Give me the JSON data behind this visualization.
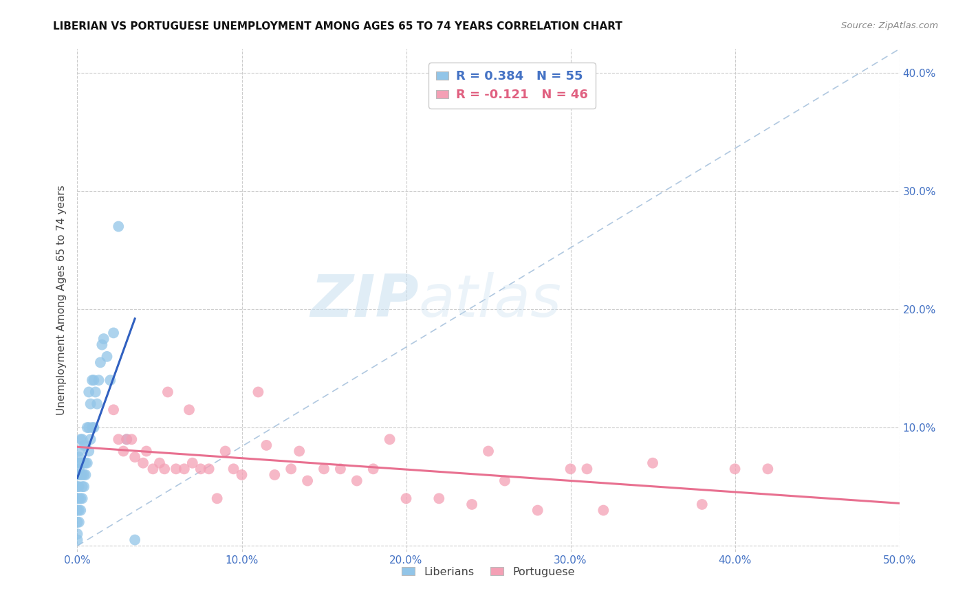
{
  "title": "LIBERIAN VS PORTUGUESE UNEMPLOYMENT AMONG AGES 65 TO 74 YEARS CORRELATION CHART",
  "source": "Source: ZipAtlas.com",
  "ylabel": "Unemployment Among Ages 65 to 74 years",
  "xlim": [
    0.0,
    0.5
  ],
  "ylim": [
    -0.005,
    0.42
  ],
  "xticks": [
    0.0,
    0.1,
    0.2,
    0.3,
    0.4,
    0.5
  ],
  "yticks": [
    0.0,
    0.1,
    0.2,
    0.3,
    0.4
  ],
  "xticklabels": [
    "0.0%",
    "10.0%",
    "20.0%",
    "30.0%",
    "40.0%",
    "50.0%"
  ],
  "yticklabels_right": [
    "",
    "10.0%",
    "20.0%",
    "30.0%",
    "40.0%"
  ],
  "liberian_color": "#92C5E8",
  "portuguese_color": "#F4A0B5",
  "liberian_R": 0.384,
  "liberian_N": 55,
  "portuguese_R": -0.121,
  "portuguese_N": 46,
  "trend_line_liberian_color": "#3060C0",
  "trend_line_portuguese_color": "#E87090",
  "dashed_line_color": "#B0C8E0",
  "watermark_zip": "ZIP",
  "watermark_atlas": "atlas",
  "liberian_x": [
    0.0,
    0.0,
    0.0,
    0.0,
    0.0,
    0.0,
    0.0,
    0.001,
    0.001,
    0.001,
    0.001,
    0.001,
    0.001,
    0.001,
    0.001,
    0.001,
    0.002,
    0.002,
    0.002,
    0.002,
    0.002,
    0.003,
    0.003,
    0.003,
    0.003,
    0.004,
    0.004,
    0.004,
    0.004,
    0.005,
    0.005,
    0.005,
    0.006,
    0.006,
    0.007,
    0.007,
    0.007,
    0.008,
    0.008,
    0.009,
    0.009,
    0.01,
    0.01,
    0.011,
    0.012,
    0.013,
    0.014,
    0.015,
    0.016,
    0.018,
    0.02,
    0.022,
    0.025,
    0.03,
    0.035
  ],
  "liberian_y": [
    0.005,
    0.01,
    0.02,
    0.03,
    0.04,
    0.05,
    0.06,
    0.02,
    0.03,
    0.04,
    0.05,
    0.06,
    0.065,
    0.07,
    0.075,
    0.08,
    0.03,
    0.04,
    0.06,
    0.07,
    0.09,
    0.04,
    0.05,
    0.06,
    0.09,
    0.05,
    0.06,
    0.07,
    0.085,
    0.06,
    0.07,
    0.085,
    0.07,
    0.1,
    0.08,
    0.1,
    0.13,
    0.09,
    0.12,
    0.1,
    0.14,
    0.1,
    0.14,
    0.13,
    0.12,
    0.14,
    0.155,
    0.17,
    0.175,
    0.16,
    0.14,
    0.18,
    0.27,
    0.09,
    0.005
  ],
  "portuguese_x": [
    0.022,
    0.025,
    0.028,
    0.03,
    0.033,
    0.035,
    0.04,
    0.042,
    0.046,
    0.05,
    0.053,
    0.055,
    0.06,
    0.065,
    0.068,
    0.07,
    0.075,
    0.08,
    0.085,
    0.09,
    0.095,
    0.1,
    0.11,
    0.115,
    0.12,
    0.13,
    0.135,
    0.14,
    0.15,
    0.16,
    0.17,
    0.18,
    0.19,
    0.2,
    0.22,
    0.24,
    0.25,
    0.26,
    0.28,
    0.3,
    0.31,
    0.32,
    0.35,
    0.38,
    0.4,
    0.42
  ],
  "portuguese_y": [
    0.115,
    0.09,
    0.08,
    0.09,
    0.09,
    0.075,
    0.07,
    0.08,
    0.065,
    0.07,
    0.065,
    0.13,
    0.065,
    0.065,
    0.115,
    0.07,
    0.065,
    0.065,
    0.04,
    0.08,
    0.065,
    0.06,
    0.13,
    0.085,
    0.06,
    0.065,
    0.08,
    0.055,
    0.065,
    0.065,
    0.055,
    0.065,
    0.09,
    0.04,
    0.04,
    0.035,
    0.08,
    0.055,
    0.03,
    0.065,
    0.065,
    0.03,
    0.07,
    0.035,
    0.065,
    0.065
  ]
}
